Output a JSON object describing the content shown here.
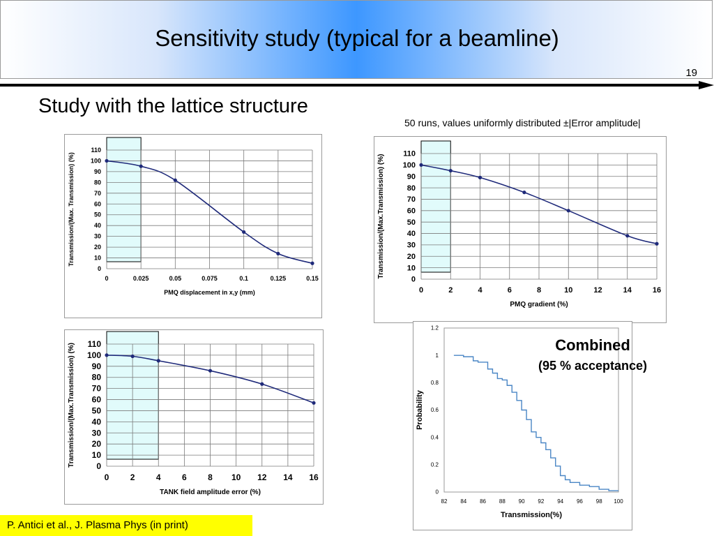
{
  "slide": {
    "title": "Sensitivity study (typical for a beamline)",
    "number": "19",
    "subtitle": "Study with the lattice structure",
    "note": "50 runs, values uniformly distributed ±|Error amplitude|",
    "combined_label": "Combined",
    "combined_sub": "(95 % acceptance)",
    "citation": "P. Antici et al., J. Plasma Phys (in print)"
  },
  "colors": {
    "line": "#1f2a7a",
    "cdf_line": "#4a86c5",
    "highlight_fill": "#e1fbfb",
    "highlight_stroke": "#000000",
    "grid": "#7a7a7a",
    "title_gradient_center": "#3d97ff",
    "citation_bg": "#ffff00"
  },
  "chart_data": [
    {
      "id": "pmq-displacement",
      "type": "line",
      "xlabel": "PMQ displacement in x,y (mm)",
      "ylabel": "Transmission/(Max. Transmission) (%)",
      "x": [
        0,
        0.025,
        0.05,
        0.1,
        0.125,
        0.15
      ],
      "y": [
        100,
        95,
        82,
        34,
        14,
        5
      ],
      "xlim": [
        0,
        0.15
      ],
      "ylim": [
        0,
        110
      ],
      "xticks": [
        "0",
        "0.025",
        "0.05",
        "0.075",
        "0.1",
        "0.125",
        "0.15"
      ],
      "yticks": [
        "0",
        "10",
        "20",
        "30",
        "40",
        "50",
        "60",
        "70",
        "80",
        "90",
        "100",
        "110"
      ],
      "highlight_x": [
        0,
        0.025
      ],
      "grid": true
    },
    {
      "id": "pmq-gradient",
      "type": "line",
      "xlabel": "PMQ gradient (%)",
      "ylabel": "Transmission/(Max.Transmission) (%)",
      "x": [
        0,
        2,
        4,
        7,
        10,
        14,
        16
      ],
      "y": [
        100,
        95,
        89,
        76,
        60,
        38,
        31
      ],
      "xlim": [
        0,
        16
      ],
      "ylim": [
        0,
        110
      ],
      "xticks": [
        "0",
        "2",
        "4",
        "6",
        "8",
        "10",
        "12",
        "14",
        "16"
      ],
      "yticks": [
        "0",
        "10",
        "20",
        "30",
        "40",
        "50",
        "60",
        "70",
        "80",
        "90",
        "100",
        "110"
      ],
      "highlight_x": [
        0,
        2
      ],
      "grid": true
    },
    {
      "id": "tank-field",
      "type": "line",
      "xlabel": "TANK field amplitude error (%)",
      "ylabel": "Transmission/(Max.Transmission) (%)",
      "x": [
        0,
        2,
        4,
        8,
        12,
        16
      ],
      "y": [
        100,
        99,
        95,
        86,
        74,
        57
      ],
      "xlim": [
        0,
        16
      ],
      "ylim": [
        0,
        110
      ],
      "xticks": [
        "0",
        "2",
        "4",
        "6",
        "8",
        "10",
        "12",
        "14",
        "16"
      ],
      "yticks": [
        "0",
        "10",
        "20",
        "30",
        "40",
        "50",
        "60",
        "70",
        "80",
        "90",
        "100",
        "110"
      ],
      "highlight_x": [
        0,
        4
      ],
      "grid": true
    },
    {
      "id": "combined-cdf",
      "type": "line",
      "xlabel": "Transmission(%)",
      "ylabel": "Probability",
      "x": [
        83,
        84,
        85,
        85.5,
        86,
        86.5,
        87,
        87.5,
        88,
        88.5,
        89,
        89.5,
        90,
        90.5,
        91,
        91.5,
        92,
        92.5,
        93,
        93.5,
        94,
        94.5,
        95,
        95.5,
        96,
        97,
        98,
        99,
        100
      ],
      "y": [
        1,
        0.99,
        0.96,
        0.95,
        0.95,
        0.9,
        0.87,
        0.83,
        0.82,
        0.78,
        0.73,
        0.67,
        0.6,
        0.53,
        0.44,
        0.4,
        0.36,
        0.31,
        0.25,
        0.19,
        0.12,
        0.09,
        0.07,
        0.07,
        0.05,
        0.04,
        0.02,
        0.01,
        0.01
      ],
      "xlim": [
        82,
        100
      ],
      "ylim": [
        0,
        1.2
      ],
      "xticks": [
        "82",
        "84",
        "86",
        "88",
        "90",
        "92",
        "94",
        "96",
        "98",
        "100"
      ],
      "yticks": [
        "0",
        "0.2",
        "0.4",
        "0.6",
        "0.8",
        "1",
        "1.2"
      ],
      "step": true,
      "grid": false
    }
  ]
}
